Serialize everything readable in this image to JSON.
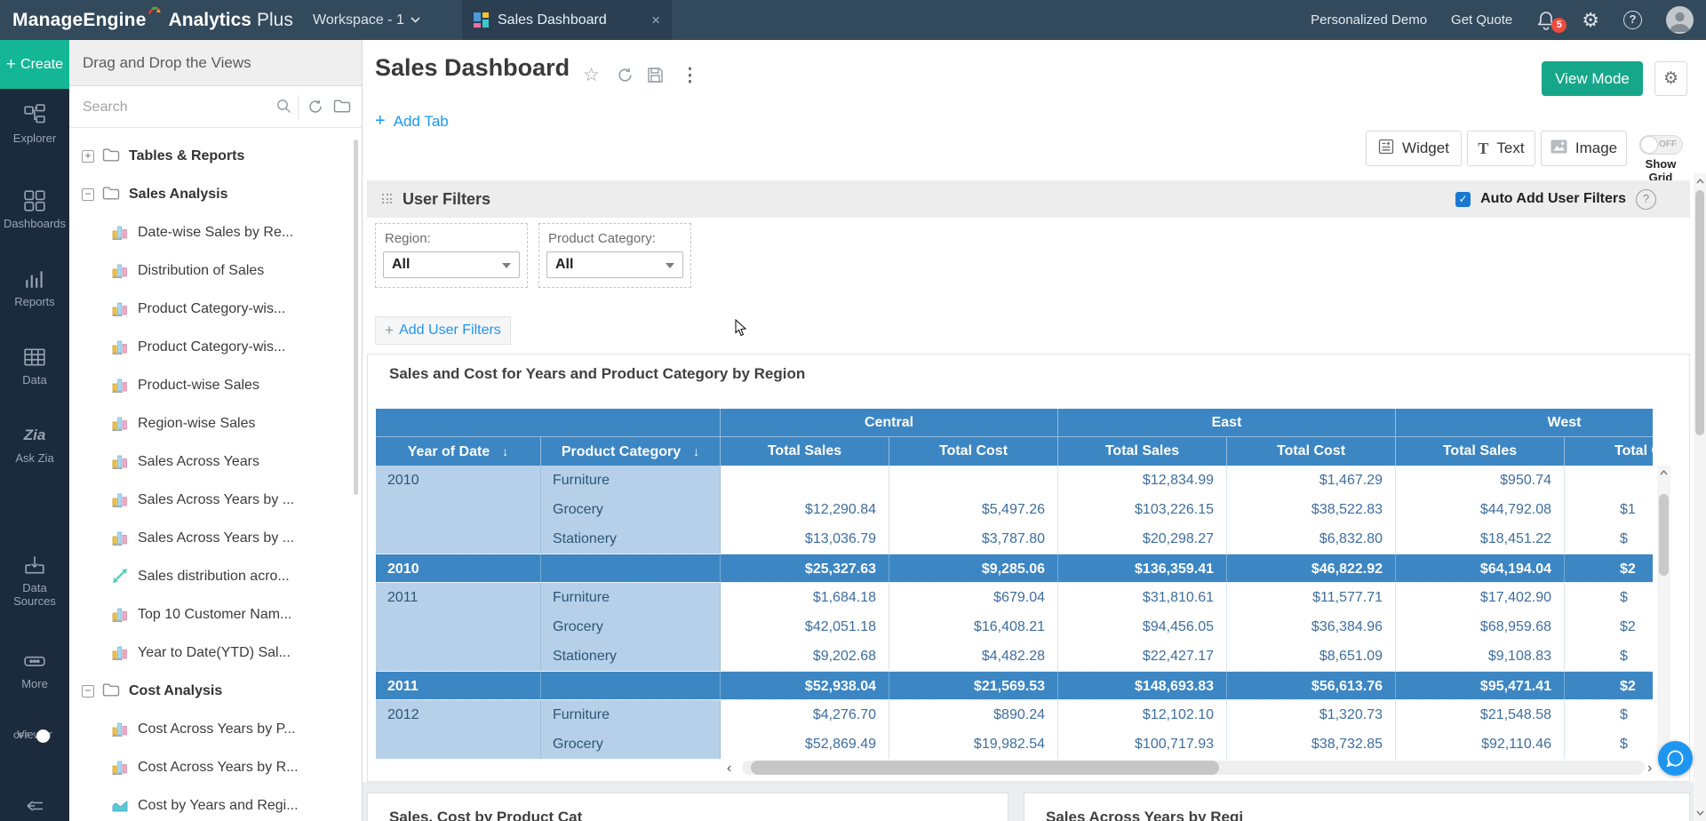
{
  "topbar": {
    "logo_primary": "ManageEngine",
    "logo_secondary_bold": "Analytics",
    "logo_secondary_light": "Plus",
    "workspace_label": "Workspace - 1",
    "tab_label": "Sales Dashboard",
    "link_demo": "Personalized Demo",
    "link_quote": "Get Quote",
    "notification_count": "5"
  },
  "rail": {
    "create_label": "Create",
    "items": [
      {
        "label": "Explorer"
      },
      {
        "label": "Dashboards"
      },
      {
        "label": "Reports"
      },
      {
        "label": "Data"
      },
      {
        "label": "Ask Zia"
      },
      {
        "label": "Data Sources"
      },
      {
        "label": "More"
      }
    ],
    "viewer_label": "Viewer",
    "viewer_state": "OFF"
  },
  "tree": {
    "header": "Drag and Drop the Views",
    "search_placeholder": "Search",
    "nodes": [
      {
        "type": "folder",
        "state": "collapsed",
        "label": "Tables & Reports"
      },
      {
        "type": "folder",
        "state": "expanded",
        "label": "Sales Analysis"
      },
      {
        "type": "view",
        "icon": "bar-chart",
        "label": "Date-wise Sales by Re..."
      },
      {
        "type": "view",
        "icon": "bar-chart",
        "label": "Distribution of Sales"
      },
      {
        "type": "view",
        "icon": "bar-chart",
        "label": "Product Category-wis..."
      },
      {
        "type": "view",
        "icon": "bar-chart",
        "label": "Product Category-wis..."
      },
      {
        "type": "view",
        "icon": "bar-chart",
        "label": "Product-wise Sales"
      },
      {
        "type": "view",
        "icon": "bar-chart",
        "label": "Region-wise Sales"
      },
      {
        "type": "view",
        "icon": "bar-chart",
        "label": "Sales Across Years"
      },
      {
        "type": "view",
        "icon": "bar-chart",
        "label": "Sales Across Years by ..."
      },
      {
        "type": "view",
        "icon": "bar-chart",
        "label": "Sales Across Years by ..."
      },
      {
        "type": "view",
        "icon": "scatter",
        "label": "Sales distribution acro..."
      },
      {
        "type": "view",
        "icon": "bar-chart",
        "label": "Top 10 Customer Nam..."
      },
      {
        "type": "view",
        "icon": "bar-chart",
        "label": "Year to Date(YTD) Sal..."
      },
      {
        "type": "folder",
        "state": "expanded",
        "label": "Cost Analysis"
      },
      {
        "type": "view",
        "icon": "bar-chart",
        "label": "Cost Across Years by P..."
      },
      {
        "type": "view",
        "icon": "bar-chart",
        "label": "Cost Across Years by R..."
      },
      {
        "type": "view",
        "icon": "area",
        "label": "Cost by Years and Regi..."
      }
    ]
  },
  "main": {
    "title": "Sales Dashboard",
    "view_mode_label": "View Mode",
    "add_tab_label": "Add Tab",
    "widget_label": "Widget",
    "text_label": "Text",
    "image_label": "Image",
    "show_grid_label": "Show Grid",
    "show_grid_state": "OFF",
    "filters": {
      "heading": "User Filters",
      "auto_add_label": "Auto Add User Filters",
      "add_filters_label": "Add User Filters",
      "items": [
        {
          "label": "Region:",
          "value": "All"
        },
        {
          "label": "Product Category:",
          "value": "All"
        }
      ]
    },
    "widget_title": "Sales and Cost for Years and Product Category by Region",
    "bottom_left_title": "Sales, Cost by Product Cat",
    "bottom_right_title": "Sales Across Years by Regi"
  },
  "table": {
    "groups": [
      "Central",
      "East",
      "West"
    ],
    "key_columns": [
      "Year of Date",
      "Product Category"
    ],
    "measure_columns": [
      "Total Sales",
      "Total Cost"
    ],
    "rows": [
      {
        "kind": "data",
        "year": "2010",
        "category": "Furniture",
        "values": [
          "",
          "",
          "$12,834.99",
          "$1,467.29",
          "$950.74",
          ""
        ]
      },
      {
        "kind": "data",
        "year": "",
        "category": "Grocery",
        "values": [
          "$12,290.84",
          "$5,497.26",
          "$103,226.15",
          "$38,522.83",
          "$44,792.08",
          "$1"
        ]
      },
      {
        "kind": "data",
        "year": "",
        "category": "Stationery",
        "values": [
          "$13,036.79",
          "$3,787.80",
          "$20,298.27",
          "$6,832.80",
          "$18,451.22",
          "$"
        ]
      },
      {
        "kind": "summary",
        "year": "2010",
        "category": "",
        "values": [
          "$25,327.63",
          "$9,285.06",
          "$136,359.41",
          "$46,822.92",
          "$64,194.04",
          "$2"
        ]
      },
      {
        "kind": "data",
        "year": "2011",
        "category": "Furniture",
        "values": [
          "$1,684.18",
          "$679.04",
          "$31,810.61",
          "$11,577.71",
          "$17,402.90",
          "$"
        ]
      },
      {
        "kind": "data",
        "year": "",
        "category": "Grocery",
        "values": [
          "$42,051.18",
          "$16,408.21",
          "$94,456.05",
          "$36,384.96",
          "$68,959.68",
          "$2"
        ]
      },
      {
        "kind": "data",
        "year": "",
        "category": "Stationery",
        "values": [
          "$9,202.68",
          "$4,482.28",
          "$22,427.17",
          "$8,651.09",
          "$9,108.83",
          "$"
        ]
      },
      {
        "kind": "summary",
        "year": "2011",
        "category": "",
        "values": [
          "$52,938.04",
          "$21,569.53",
          "$148,693.83",
          "$56,613.76",
          "$95,471.41",
          "$2"
        ]
      },
      {
        "kind": "data",
        "year": "2012",
        "category": "Furniture",
        "values": [
          "$4,276.70",
          "$890.24",
          "$12,102.10",
          "$1,320.73",
          "$21,548.58",
          "$"
        ]
      },
      {
        "kind": "data",
        "year": "",
        "category": "Grocery",
        "values": [
          "$52,869.49",
          "$19,982.54",
          "$100,717.93",
          "$38,732.85",
          "$92,110.46",
          "$"
        ]
      }
    ]
  },
  "colors": {
    "topbar_bg": "#33495c",
    "rail_bg": "#1c2a3d",
    "accent_green": "#14b795",
    "view_mode_green": "#16a78a",
    "accent_blue": "#1e96f0",
    "table_header_blue": "#3c86c3",
    "table_key_cell_blue": "#b6d0e9",
    "badge_red": "#ee4b3e"
  }
}
